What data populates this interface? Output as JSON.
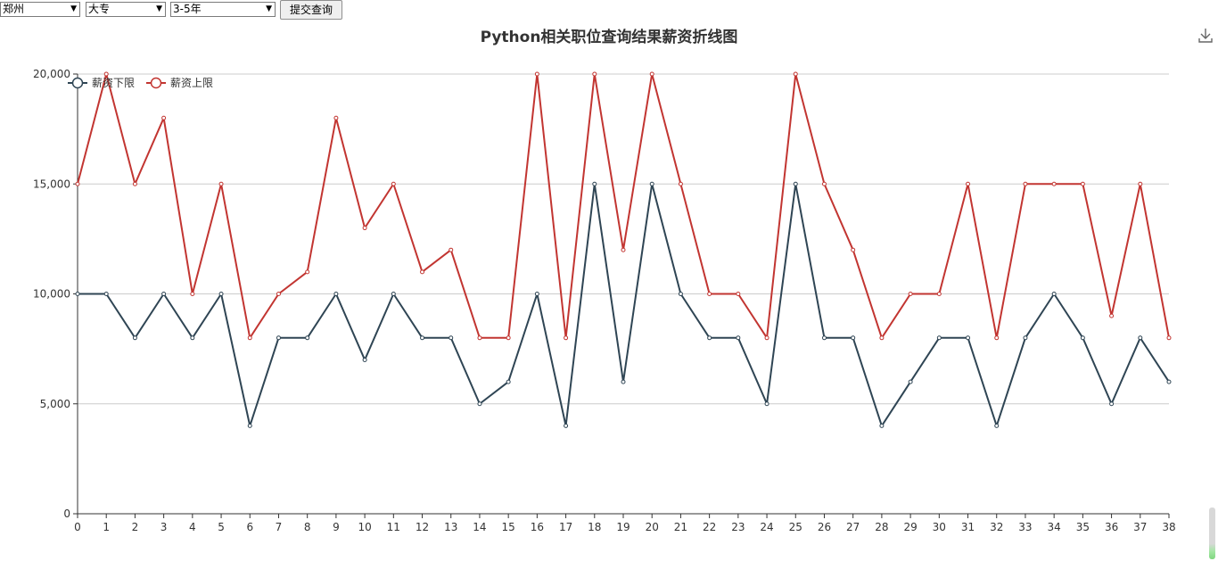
{
  "controls": {
    "city": "郑州",
    "education": "大专",
    "experience": "3-5年",
    "submit_label": "提交查询"
  },
  "colors": {
    "lower": "#2f4554",
    "upper": "#c23531",
    "grid": "#cccccc",
    "axis": "#333333"
  },
  "icons": {
    "download": "download-icon"
  },
  "chart_data": {
    "type": "line",
    "title": "Python相关职位查询结果薪资折线图",
    "xlabel": "",
    "ylabel": "",
    "categories": [
      "0",
      "1",
      "2",
      "3",
      "4",
      "5",
      "6",
      "7",
      "8",
      "9",
      "10",
      "11",
      "12",
      "13",
      "14",
      "15",
      "16",
      "17",
      "18",
      "19",
      "20",
      "21",
      "22",
      "23",
      "24",
      "25",
      "26",
      "27",
      "28",
      "29",
      "30",
      "31",
      "32",
      "33",
      "34",
      "35",
      "36",
      "37",
      "38"
    ],
    "ylim": [
      0,
      20000
    ],
    "yticks": [
      0,
      5000,
      10000,
      15000,
      20000
    ],
    "ytick_labels": [
      "0",
      "5,000",
      "10,000",
      "15,000",
      "20,000"
    ],
    "grid": true,
    "legend_position": "top-left",
    "series": [
      {
        "name": "薪资下限",
        "color": "#2f4554",
        "values": [
          10000,
          10000,
          8000,
          10000,
          8000,
          10000,
          4000,
          8000,
          8000,
          10000,
          7000,
          10000,
          8000,
          8000,
          5000,
          6000,
          10000,
          4000,
          15000,
          6000,
          15000,
          10000,
          8000,
          8000,
          5000,
          15000,
          8000,
          8000,
          4000,
          6000,
          8000,
          8000,
          4000,
          8000,
          10000,
          8000,
          5000,
          8000,
          6000
        ]
      },
      {
        "name": "薪资上限",
        "color": "#c23531",
        "values": [
          15000,
          20000,
          15000,
          18000,
          10000,
          15000,
          8000,
          10000,
          11000,
          18000,
          13000,
          15000,
          11000,
          12000,
          8000,
          8000,
          20000,
          8000,
          20000,
          12000,
          20000,
          15000,
          10000,
          10000,
          8000,
          20000,
          15000,
          12000,
          8000,
          10000,
          10000,
          15000,
          8000,
          15000,
          15000,
          15000,
          9000,
          15000,
          8000
        ]
      }
    ]
  }
}
